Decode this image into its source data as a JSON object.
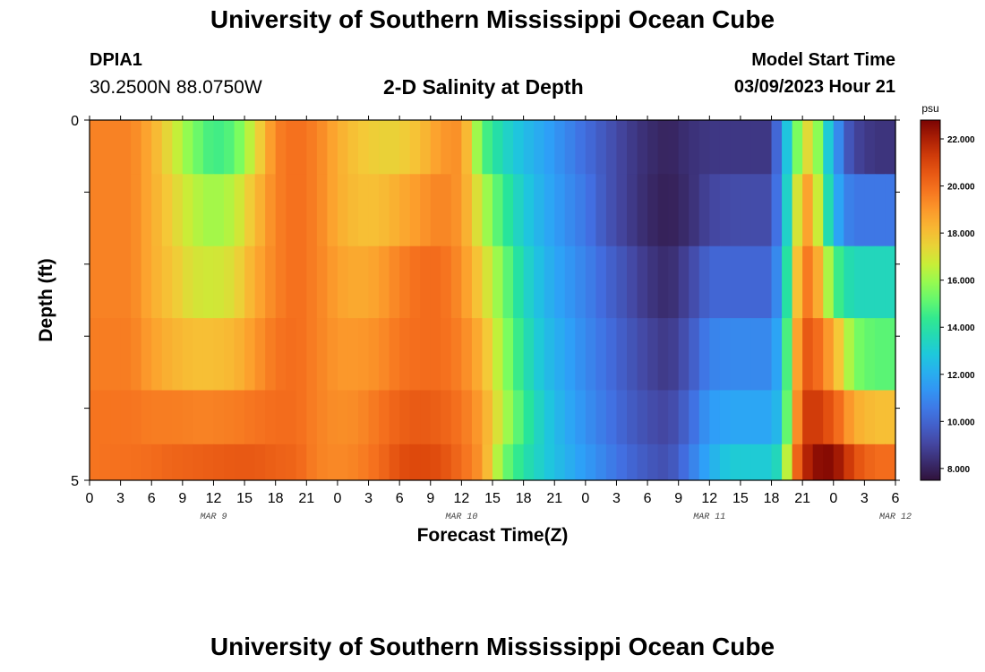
{
  "header": {
    "title_top": "University of Southern Mississippi Ocean Cube",
    "title_bottom": "University of Southern Mississippi Ocean Cube",
    "station_id": "DPIA1",
    "station_coords": "30.2500N  88.0750W",
    "plot_title": "2-D Salinity at Depth",
    "model_start_label": "Model Start Time",
    "model_start_value": "03/09/2023 Hour 21"
  },
  "chart_data": {
    "type": "heatmap",
    "title": "2-D Salinity at Depth",
    "xlabel": "Forecast Time(Z)",
    "ylabel": "Depth (ft)",
    "x_tick_labels": [
      "0",
      "3",
      "6",
      "9",
      "12",
      "15",
      "18",
      "21",
      "0",
      "3",
      "6",
      "9",
      "12",
      "15",
      "18",
      "21",
      "0",
      "3",
      "6",
      "9",
      "12",
      "15",
      "18",
      "21",
      "0",
      "3",
      "6"
    ],
    "x_date_labels": [
      {
        "label": "MAR 9",
        "at_hour": 12
      },
      {
        "label": "MAR 10",
        "at_hour": 36
      },
      {
        "label": "MAR 11",
        "at_hour": 60
      },
      {
        "label": "MAR 12",
        "at_hour": 78
      }
    ],
    "x_range_hours": [
      0,
      78
    ],
    "y_tick_labels": [
      "0",
      "5"
    ],
    "y_range": [
      0,
      5
    ],
    "depth_levels": [
      0.25,
      1.25,
      2.25,
      3.25,
      4.25,
      4.75
    ],
    "colorbar": {
      "unit": "psu",
      "min": 7.5,
      "max": 22.8,
      "tick_labels": [
        "22.000",
        "20.000",
        "18.000",
        "16.000",
        "14.000",
        "12.000",
        "10.000",
        "8.000"
      ],
      "tick_values": [
        22,
        20,
        18,
        16,
        14,
        12,
        10,
        8
      ]
    },
    "series": [
      {
        "depth_ft": 0.25,
        "time_hours": [
          0,
          4,
          6,
          8,
          10,
          12,
          14,
          16,
          18,
          20,
          22,
          24,
          26,
          28,
          30,
          32,
          34,
          36,
          38,
          40,
          42,
          44,
          46,
          48,
          50,
          52,
          54,
          56,
          58,
          60,
          62,
          64,
          66,
          67,
          68,
          69,
          70,
          71,
          72,
          73,
          74,
          76,
          78
        ],
        "values": [
          19.5,
          19.5,
          18.5,
          17.0,
          15.5,
          14.5,
          15.0,
          17.0,
          19.5,
          20.0,
          19.5,
          18.5,
          17.8,
          17.5,
          17.5,
          18.0,
          19.0,
          19.2,
          15.0,
          13.5,
          12.5,
          11.8,
          11.0,
          10.2,
          9.5,
          8.8,
          8.3,
          8.0,
          8.4,
          8.6,
          8.6,
          8.6,
          8.6,
          11.5,
          14.0,
          17.0,
          17.5,
          14.0,
          12.0,
          10.0,
          9.0,
          8.5,
          8.5
        ]
      },
      {
        "depth_ft": 1.25,
        "time_hours": [
          0,
          4,
          6,
          8,
          10,
          12,
          14,
          16,
          18,
          20,
          22,
          24,
          26,
          28,
          30,
          32,
          34,
          36,
          38,
          40,
          42,
          44,
          46,
          48,
          50,
          52,
          54,
          56,
          58,
          60,
          62,
          64,
          66,
          67,
          68,
          69,
          70,
          71,
          72,
          73,
          74,
          76,
          78
        ],
        "values": [
          19.5,
          19.5,
          18.5,
          17.5,
          16.5,
          16.0,
          16.5,
          18.0,
          19.5,
          20.0,
          19.5,
          18.5,
          18.0,
          18.0,
          18.5,
          19.0,
          19.5,
          19.0,
          16.5,
          14.5,
          13.0,
          12.0,
          11.2,
          10.5,
          9.5,
          8.8,
          8.2,
          7.9,
          8.3,
          9.0,
          9.2,
          9.2,
          9.2,
          11.5,
          15.0,
          19.0,
          18.5,
          15.0,
          12.5,
          11.0,
          10.5,
          10.5,
          10.5
        ]
      },
      {
        "depth_ft": 2.25,
        "time_hours": [
          0,
          4,
          6,
          8,
          10,
          12,
          14,
          16,
          18,
          20,
          22,
          24,
          26,
          28,
          30,
          32,
          34,
          36,
          38,
          40,
          42,
          44,
          46,
          48,
          50,
          52,
          54,
          56,
          58,
          60,
          62,
          64,
          66,
          67,
          68,
          69,
          70,
          71,
          72,
          73,
          74,
          76,
          78
        ],
        "values": [
          19.5,
          19.5,
          18.5,
          17.8,
          17.0,
          16.8,
          17.2,
          18.5,
          19.5,
          20.0,
          19.5,
          18.8,
          18.5,
          18.8,
          19.5,
          20.0,
          20.0,
          19.2,
          17.5,
          15.5,
          13.5,
          12.3,
          11.5,
          10.8,
          10.0,
          9.3,
          8.6,
          8.2,
          9.0,
          10.0,
          10.0,
          10.0,
          10.0,
          12.0,
          16.0,
          19.8,
          19.5,
          17.5,
          15.0,
          14.0,
          13.5,
          13.5,
          13.5
        ]
      },
      {
        "depth_ft": 3.25,
        "time_hours": [
          0,
          4,
          6,
          8,
          10,
          12,
          14,
          16,
          18,
          20,
          22,
          24,
          26,
          28,
          30,
          32,
          34,
          36,
          38,
          40,
          42,
          44,
          46,
          48,
          50,
          52,
          54,
          56,
          58,
          60,
          62,
          64,
          66,
          67,
          68,
          69,
          70,
          71,
          72,
          73,
          74,
          76,
          78
        ],
        "values": [
          19.6,
          19.6,
          18.8,
          18.3,
          18.0,
          18.0,
          18.2,
          19.0,
          19.8,
          20.0,
          19.5,
          19.0,
          19.0,
          19.2,
          19.8,
          20.0,
          20.0,
          19.5,
          18.3,
          16.0,
          14.0,
          12.6,
          11.8,
          11.0,
          10.3,
          9.6,
          9.0,
          8.6,
          9.5,
          10.8,
          11.0,
          11.0,
          11.0,
          12.5,
          17.0,
          20.5,
          20.5,
          19.5,
          18.5,
          17.0,
          15.5,
          15.0,
          15.0
        ]
      },
      {
        "depth_ft": 4.25,
        "time_hours": [
          0,
          4,
          6,
          8,
          10,
          12,
          14,
          16,
          18,
          20,
          22,
          24,
          26,
          28,
          30,
          32,
          34,
          36,
          38,
          40,
          42,
          44,
          46,
          48,
          50,
          52,
          54,
          56,
          58,
          60,
          62,
          64,
          66,
          67,
          68,
          69,
          70,
          71,
          72,
          73,
          74,
          76,
          78
        ],
        "values": [
          19.8,
          19.8,
          19.6,
          19.6,
          19.5,
          19.5,
          19.6,
          19.8,
          20.0,
          20.0,
          19.5,
          19.2,
          19.3,
          19.8,
          20.3,
          20.5,
          20.3,
          19.8,
          18.8,
          16.5,
          14.5,
          13.0,
          12.0,
          11.2,
          10.5,
          9.8,
          9.3,
          9.0,
          10.0,
          11.5,
          11.8,
          11.8,
          11.8,
          12.8,
          17.5,
          21.0,
          21.5,
          21.0,
          20.5,
          19.5,
          18.5,
          18.0,
          18.0
        ]
      },
      {
        "depth_ft": 4.75,
        "time_hours": [
          0,
          4,
          6,
          8,
          10,
          12,
          14,
          16,
          18,
          20,
          22,
          24,
          26,
          28,
          30,
          32,
          34,
          36,
          38,
          40,
          42,
          44,
          46,
          48,
          50,
          52,
          54,
          56,
          58,
          60,
          62,
          64,
          66,
          67,
          68,
          69,
          70,
          71,
          72,
          73,
          74,
          76,
          78
        ],
        "values": [
          19.8,
          19.9,
          20.0,
          20.2,
          20.3,
          20.4,
          20.5,
          20.5,
          20.3,
          20.2,
          19.5,
          19.3,
          19.5,
          20.0,
          20.8,
          21.0,
          20.8,
          20.0,
          19.0,
          15.5,
          14.0,
          13.0,
          12.2,
          11.5,
          10.8,
          10.1,
          9.6,
          9.3,
          10.5,
          12.0,
          13.0,
          13.0,
          13.0,
          14.0,
          19.0,
          21.5,
          22.3,
          22.7,
          22.5,
          21.8,
          20.8,
          20.0,
          20.0
        ]
      }
    ],
    "grid": false
  },
  "colors": {
    "background": "#ffffff",
    "axis": "#000000"
  }
}
